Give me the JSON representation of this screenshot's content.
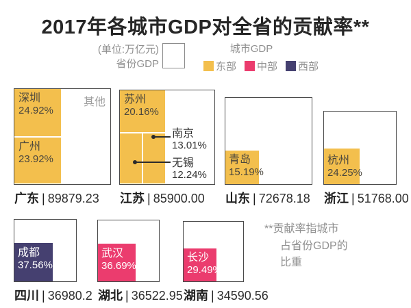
{
  "title": "2017年各城市GDP对全省的贡献率**",
  "legend": {
    "unit_label": "(单位:万亿元)",
    "province_gdp_label": "省份GDP",
    "city_gdp_label": "城市GDP",
    "regions": [
      {
        "name": "东部",
        "color": "#F3BF4D"
      },
      {
        "name": "中部",
        "color": "#EB3C6E"
      },
      {
        "name": "西部",
        "color": "#454070"
      }
    ]
  },
  "separator": "|",
  "colors": {
    "east": "#F3BF4D",
    "central": "#EB3C6E",
    "west": "#454070",
    "box_border": "#4A4A4A"
  },
  "footnote": {
    "lines": [
      "**贡献率指城市",
      "占省份GDP的",
      "比重"
    ]
  },
  "chart_data": {
    "type": "treemap",
    "title": "2017年各城市GDP对全省的贡献率**",
    "unit": "万亿元",
    "note": "**贡献率指城市占省份GDP的比重",
    "layout_hint": "one square per province, side proportional to sqrt(province GDP); colored inner blocks area-proportional to city contribution %; rows bottom-aligned",
    "provinces": [
      {
        "name": "广东",
        "gdp": "89879.23",
        "gdp_value": 89879.23,
        "region": "东部",
        "others_label": "其他",
        "cities": [
          {
            "name": "深圳",
            "pct": "24.92%",
            "value": 24.92
          },
          {
            "name": "广州",
            "pct": "23.92%",
            "value": 23.92
          }
        ]
      },
      {
        "name": "江苏",
        "gdp": "85900.00",
        "gdp_value": 85900.0,
        "region": "东部",
        "cities": [
          {
            "name": "苏州",
            "pct": "20.16%",
            "value": 20.16
          },
          {
            "name": "南京",
            "pct": "13.01%",
            "value": 13.01
          },
          {
            "name": "无锡",
            "pct": "12.24%",
            "value": 12.24
          }
        ]
      },
      {
        "name": "山东",
        "gdp": "72678.18",
        "gdp_value": 72678.18,
        "region": "东部",
        "cities": [
          {
            "name": "青岛",
            "pct": "15.19%",
            "value": 15.19
          }
        ]
      },
      {
        "name": "浙江",
        "gdp": "51768.00",
        "gdp_value": 51768.0,
        "region": "东部",
        "cities": [
          {
            "name": "杭州",
            "pct": "24.25%",
            "value": 24.25
          }
        ]
      },
      {
        "name": "四川",
        "gdp": "36980.2",
        "gdp_value": 36980.2,
        "region": "西部",
        "cities": [
          {
            "name": "成都",
            "pct": "37.56%",
            "value": 37.56
          }
        ]
      },
      {
        "name": "湖北",
        "gdp": "36522.95",
        "gdp_value": 36522.95,
        "region": "中部",
        "cities": [
          {
            "name": "武汉",
            "pct": "36.69%",
            "value": 36.69
          }
        ]
      },
      {
        "name": "湖南",
        "gdp": "34590.56",
        "gdp_value": 34590.56,
        "region": "中部",
        "cities": [
          {
            "name": "长沙",
            "pct": "29.49%",
            "value": 29.49
          }
        ]
      }
    ]
  }
}
